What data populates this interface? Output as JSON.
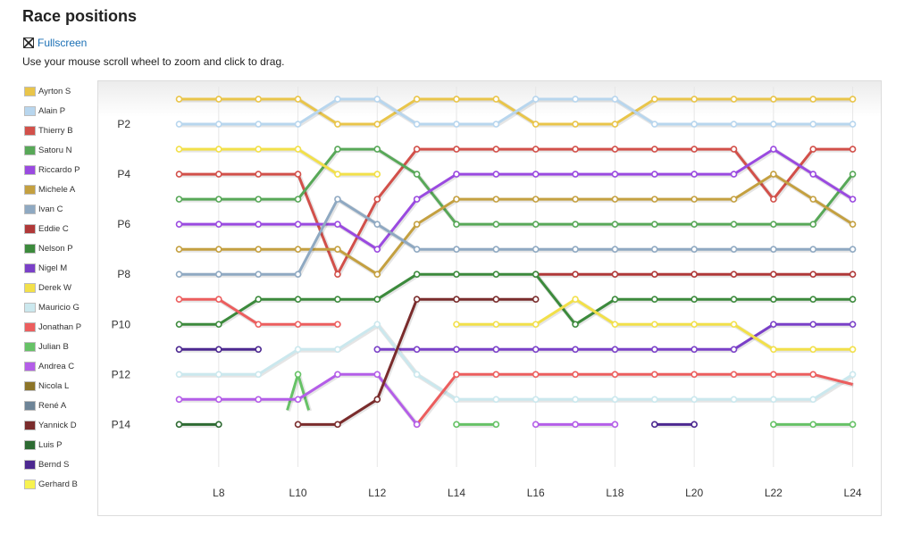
{
  "page": {
    "title": "Race positions",
    "fullscreen_label": "Fullscreen",
    "hint": "Use your mouse scroll wheel to zoom and click to drag.",
    "fullscreen_icon": "fullscreen-icon"
  },
  "chart_data": {
    "type": "line",
    "title": "",
    "xlabel": "",
    "ylabel": "",
    "x": [
      7,
      8,
      9,
      10,
      11,
      12,
      13,
      14,
      15,
      16,
      17,
      18,
      19,
      20,
      21,
      22,
      23,
      24
    ],
    "x_tick_labels": [
      "L8",
      "L10",
      "L12",
      "L14",
      "L16",
      "L18",
      "L20",
      "L22",
      "L24"
    ],
    "x_tick_values": [
      8,
      10,
      12,
      14,
      16,
      18,
      20,
      22,
      24
    ],
    "y_tick_labels": [
      "P2",
      "P4",
      "P6",
      "P8",
      "P10",
      "P12",
      "P14"
    ],
    "y_tick_values": [
      2,
      4,
      6,
      8,
      10,
      12,
      14
    ],
    "xlim": [
      6.2,
      24.1
    ],
    "ylim": [
      0.5,
      15.7
    ],
    "y_inverted": true,
    "grid": true,
    "legend_position": "left",
    "series": [
      {
        "name": "Ayrton S",
        "color": "#e9c54a",
        "values": [
          1,
          1,
          1,
          1,
          2,
          2,
          1,
          1,
          1,
          2,
          2,
          2,
          1,
          1,
          1,
          1,
          1,
          1
        ]
      },
      {
        "name": "Alain P",
        "color": "#b8d6ee",
        "values": [
          2,
          2,
          2,
          2,
          1,
          1,
          2,
          2,
          2,
          1,
          1,
          1,
          2,
          2,
          2,
          2,
          2,
          2
        ]
      },
      {
        "name": "Thierry B",
        "color": "#d2504a",
        "values": [
          4,
          4,
          4,
          4,
          8,
          5,
          3,
          3,
          3,
          3,
          3,
          3,
          3,
          3,
          3,
          5,
          3,
          3
        ]
      },
      {
        "name": "Satoru N",
        "color": "#58a858",
        "values": [
          5,
          5,
          5,
          5,
          3,
          3,
          4,
          6,
          6,
          6,
          6,
          6,
          6,
          6,
          6,
          6,
          6,
          4
        ]
      },
      {
        "name": "Riccardo P",
        "color": "#9a4ae0",
        "values": [
          6,
          6,
          6,
          6,
          6,
          7,
          5,
          4,
          4,
          4,
          4,
          4,
          4,
          4,
          4,
          3,
          4,
          5
        ]
      },
      {
        "name": "Michele A",
        "color": "#c4a040",
        "values": [
          7,
          7,
          7,
          7,
          7,
          8,
          6,
          5,
          5,
          5,
          5,
          5,
          5,
          5,
          5,
          4,
          5,
          6
        ]
      },
      {
        "name": "Ivan C",
        "color": "#8fa9c2",
        "values": [
          8,
          8,
          8,
          8,
          5,
          6,
          7,
          7,
          7,
          7,
          7,
          7,
          7,
          7,
          7,
          7,
          7,
          7
        ]
      },
      {
        "name": "Eddie C",
        "color": "#b03838",
        "values": [
          null,
          null,
          null,
          null,
          null,
          null,
          null,
          null,
          null,
          8,
          8,
          8,
          8,
          8,
          8,
          8,
          8,
          8
        ]
      },
      {
        "name": "Nelson P",
        "color": "#3c8a3c",
        "values": [
          10,
          10,
          9,
          9,
          9,
          9,
          8,
          8,
          8,
          8,
          10,
          9,
          9,
          9,
          9,
          9,
          9,
          9
        ]
      },
      {
        "name": "Nigel M",
        "color": "#7a40c8",
        "values": [
          null,
          null,
          null,
          null,
          null,
          11,
          11,
          11,
          11,
          11,
          11,
          11,
          11,
          11,
          11,
          10,
          10,
          10
        ]
      },
      {
        "name": "Derek W",
        "color": "#f2e04a",
        "values": [
          3,
          3,
          3,
          3,
          4,
          4,
          null,
          10,
          10,
          10,
          9,
          10,
          10,
          10,
          10,
          11,
          11,
          11
        ]
      },
      {
        "name": "Mauricio G",
        "color": "#cbe8ee",
        "values": [
          12,
          12,
          12,
          11,
          11,
          10,
          12,
          13,
          13,
          13,
          13,
          13,
          13,
          13,
          13,
          13,
          13,
          12
        ]
      },
      {
        "name": "Jonathan P",
        "color": "#ec5e5e",
        "values": [
          9,
          9,
          10,
          10,
          10,
          null,
          14,
          12,
          12,
          12,
          12,
          12,
          12,
          12,
          12,
          12,
          12,
          12.4
        ]
      },
      {
        "name": "Julian B",
        "color": "#66c266",
        "values": [
          null,
          null,
          null,
          12,
          null,
          null,
          null,
          14,
          14,
          null,
          null,
          null,
          null,
          null,
          null,
          14,
          14,
          14
        ]
      },
      {
        "name": "Andrea C",
        "color": "#b45ee8",
        "values": [
          13,
          13,
          13,
          13,
          12,
          12,
          14,
          null,
          null,
          14,
          14,
          14,
          null,
          null,
          null,
          null,
          null,
          null
        ]
      },
      {
        "name": "Nicola L",
        "color": "#8c7428",
        "values": [
          null,
          null,
          null,
          null,
          null,
          null,
          null,
          null,
          null,
          null,
          null,
          null,
          null,
          null,
          null,
          null,
          null,
          null
        ]
      },
      {
        "name": "René A",
        "color": "#6d8497",
        "values": [
          null,
          null,
          null,
          null,
          null,
          null,
          null,
          null,
          null,
          null,
          null,
          null,
          null,
          null,
          null,
          null,
          null,
          null
        ]
      },
      {
        "name": "Yannick D",
        "color": "#7a2c2c",
        "values": [
          null,
          null,
          null,
          14,
          14,
          13,
          9,
          9,
          9,
          9,
          null,
          null,
          null,
          null,
          null,
          null,
          null,
          null
        ]
      },
      {
        "name": "Luis P",
        "color": "#2d6a32",
        "values": [
          14,
          14,
          null,
          null,
          null,
          null,
          null,
          null,
          null,
          null,
          null,
          null,
          null,
          null,
          null,
          null,
          null,
          null
        ]
      },
      {
        "name": "Bernd S",
        "color": "#4c2890",
        "values": [
          11,
          11,
          11,
          null,
          null,
          null,
          null,
          null,
          null,
          null,
          null,
          null,
          14,
          14,
          null,
          null,
          null,
          null
        ]
      },
      {
        "name": "Gerhard B",
        "color": "#f7f250",
        "values": [
          null,
          null,
          null,
          null,
          null,
          null,
          null,
          null,
          null,
          null,
          null,
          null,
          null,
          null,
          null,
          null,
          null,
          null
        ]
      }
    ]
  }
}
